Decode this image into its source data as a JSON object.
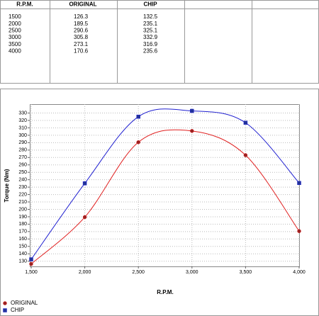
{
  "chart_data": {
    "type": "line",
    "x_label": "R.P.M.",
    "y_label": "Torque (Nm)",
    "x": [
      1500,
      2000,
      2500,
      3000,
      3500,
      4000
    ],
    "series": [
      {
        "name": "ORIGINAL",
        "color": "#e02020",
        "marker": "circle",
        "values": [
          126.3,
          189.5,
          290.6,
          305.8,
          273.1,
          170.6
        ]
      },
      {
        "name": "CHIP",
        "color": "#2020d0",
        "marker": "square",
        "values": [
          132.5,
          235.1,
          325.1,
          332.9,
          316.9,
          235.6
        ]
      }
    ],
    "xlim": [
      1500,
      4000
    ],
    "xticks": [
      {
        "value": 1500,
        "label": "1,500"
      },
      {
        "value": 2000,
        "label": "2,000"
      },
      {
        "value": 2500,
        "label": "2,500"
      },
      {
        "value": 3000,
        "label": "3,000"
      },
      {
        "value": 3500,
        "label": "3,500"
      },
      {
        "value": 4000,
        "label": "4,000"
      }
    ],
    "ylim": [
      123,
      342
    ],
    "yticks": [
      130,
      140,
      150,
      160,
      170,
      180,
      190,
      200,
      210,
      220,
      230,
      240,
      250,
      260,
      270,
      280,
      290,
      300,
      310,
      320,
      330
    ],
    "grid": true,
    "smooth": true,
    "legend": "bottom-left"
  }
}
